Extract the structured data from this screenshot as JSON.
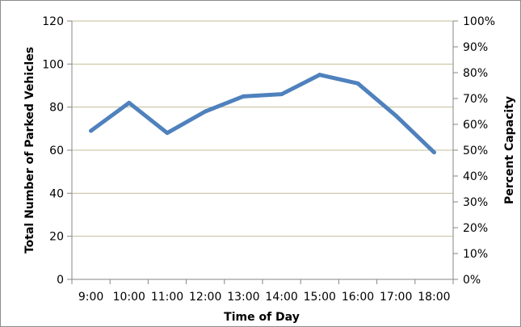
{
  "chart_data": {
    "type": "line",
    "categories": [
      "9:00",
      "10:00",
      "11:00",
      "12:00",
      "13:00",
      "14:00",
      "15:00",
      "16:00",
      "17:00",
      "18:00"
    ],
    "series": [
      {
        "values": [
          69,
          82,
          68,
          78,
          85,
          86,
          95,
          91,
          76,
          59
        ]
      }
    ],
    "xlabel": "Time of Day",
    "ylabel": "Total Number of Parked Vehicles",
    "y2label": "Percent Capacity",
    "ylim": [
      0,
      120
    ],
    "yticks": [
      0,
      20,
      40,
      60,
      80,
      100,
      120
    ],
    "y2lim": [
      0,
      1
    ],
    "y2ticks": [
      "0%",
      "10%",
      "20%",
      "30%",
      "40%",
      "50%",
      "60%",
      "70%",
      "80%",
      "90%",
      "100%"
    ],
    "grid": true,
    "legend": "none",
    "colors": {
      "line": "#4f81bd",
      "grid": "#c4bd97",
      "axis": "#868686"
    }
  }
}
